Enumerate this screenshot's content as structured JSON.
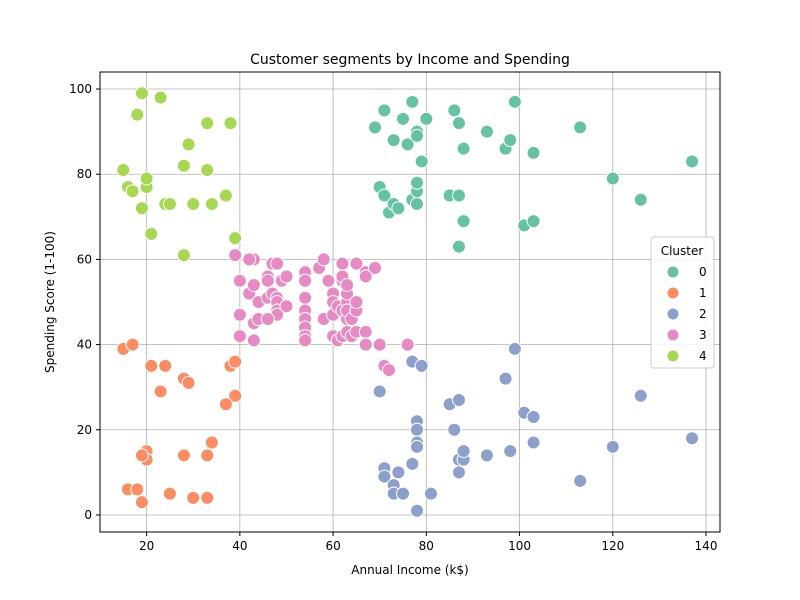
{
  "chart_data": {
    "type": "scatter",
    "title": "Customer segments by Income and Spending",
    "xlabel": "Annual Income (k$)",
    "ylabel": "Spending Score (1-100)",
    "xlim": [
      10,
      143
    ],
    "ylim": [
      -4,
      104
    ],
    "xticks": [
      20,
      40,
      60,
      80,
      100,
      120,
      140
    ],
    "yticks": [
      0,
      20,
      40,
      60,
      80,
      100
    ],
    "grid": true,
    "legend": {
      "title": "Cluster",
      "placement": "center-right"
    },
    "series": [
      {
        "name": "0",
        "color": "#66c2a5",
        "points": [
          [
            69,
            91
          ],
          [
            71,
            95
          ],
          [
            73,
            88
          ],
          [
            75,
            93
          ],
          [
            77,
            97
          ],
          [
            76,
            87
          ],
          [
            78,
            90
          ],
          [
            78,
            89
          ],
          [
            79,
            83
          ],
          [
            80,
            93
          ],
          [
            86,
            95
          ],
          [
            87,
            92
          ],
          [
            88,
            86
          ],
          [
            93,
            90
          ],
          [
            97,
            86
          ],
          [
            98,
            88
          ],
          [
            99,
            97
          ],
          [
            103,
            85
          ],
          [
            113,
            91
          ],
          [
            120,
            79
          ],
          [
            126,
            74
          ],
          [
            137,
            83
          ],
          [
            70,
            77
          ],
          [
            71,
            75
          ],
          [
            72,
            71
          ],
          [
            73,
            73
          ],
          [
            74,
            72
          ],
          [
            77,
            74
          ],
          [
            78,
            76
          ],
          [
            78,
            78
          ],
          [
            78,
            73
          ],
          [
            85,
            75
          ],
          [
            87,
            75
          ],
          [
            88,
            69
          ],
          [
            87,
            63
          ],
          [
            101,
            68
          ],
          [
            103,
            69
          ]
        ]
      },
      {
        "name": "1",
        "color": "#fc8d62",
        "points": [
          [
            15,
            39
          ],
          [
            17,
            40
          ],
          [
            21,
            35
          ],
          [
            24,
            35
          ],
          [
            28,
            32
          ],
          [
            29,
            31
          ],
          [
            23,
            29
          ],
          [
            38,
            35
          ],
          [
            39,
            36
          ],
          [
            39,
            28
          ],
          [
            37,
            26
          ],
          [
            20,
            15
          ],
          [
            20,
            13
          ],
          [
            19,
            14
          ],
          [
            28,
            14
          ],
          [
            33,
            14
          ],
          [
            34,
            17
          ],
          [
            16,
            6
          ],
          [
            18,
            6
          ],
          [
            19,
            3
          ],
          [
            25,
            5
          ],
          [
            30,
            4
          ],
          [
            33,
            4
          ]
        ]
      },
      {
        "name": "2",
        "color": "#8da0cb",
        "points": [
          [
            70,
            29
          ],
          [
            77,
            36
          ],
          [
            79,
            35
          ],
          [
            97,
            32
          ],
          [
            99,
            39
          ],
          [
            126,
            28
          ],
          [
            85,
            26
          ],
          [
            87,
            27
          ],
          [
            101,
            24
          ],
          [
            103,
            23
          ],
          [
            78,
            22
          ],
          [
            78,
            20
          ],
          [
            78,
            17
          ],
          [
            78,
            16
          ],
          [
            86,
            20
          ],
          [
            87,
            13
          ],
          [
            88,
            13
          ],
          [
            88,
            15
          ],
          [
            93,
            14
          ],
          [
            98,
            15
          ],
          [
            103,
            17
          ],
          [
            120,
            16
          ],
          [
            137,
            18
          ],
          [
            71,
            11
          ],
          [
            71,
            9
          ],
          [
            74,
            10
          ],
          [
            77,
            12
          ],
          [
            73,
            7
          ],
          [
            73,
            5
          ],
          [
            75,
            5
          ],
          [
            81,
            5
          ],
          [
            78,
            1
          ],
          [
            113,
            8
          ],
          [
            87,
            10
          ]
        ]
      },
      {
        "name": "3",
        "color": "#e78ac3",
        "points": [
          [
            39,
            61
          ],
          [
            40,
            55
          ],
          [
            42,
            52
          ],
          [
            43,
            60
          ],
          [
            44,
            50
          ],
          [
            46,
            51
          ],
          [
            46,
            56
          ],
          [
            46,
            55
          ],
          [
            47,
            52
          ],
          [
            47,
            59
          ],
          [
            48,
            51
          ],
          [
            48,
            59
          ],
          [
            48,
            50
          ],
          [
            48,
            48
          ],
          [
            48,
            47
          ],
          [
            49,
            55
          ],
          [
            50,
            56
          ],
          [
            50,
            49
          ],
          [
            54,
            57
          ],
          [
            54,
            55
          ],
          [
            54,
            51
          ],
          [
            54,
            48
          ],
          [
            54,
            46
          ],
          [
            54,
            44
          ],
          [
            54,
            42
          ],
          [
            54,
            41
          ],
          [
            57,
            58
          ],
          [
            58,
            60
          ],
          [
            58,
            46
          ],
          [
            59,
            55
          ],
          [
            60,
            52
          ],
          [
            60,
            47
          ],
          [
            60,
            50
          ],
          [
            60,
            42
          ],
          [
            61,
            49
          ],
          [
            61,
            41
          ],
          [
            62,
            48
          ],
          [
            62,
            59
          ],
          [
            62,
            55
          ],
          [
            62,
            56
          ],
          [
            62,
            42
          ],
          [
            63,
            50
          ],
          [
            63,
            46
          ],
          [
            63,
            43
          ],
          [
            63,
            48
          ],
          [
            63,
            52
          ],
          [
            63,
            54
          ],
          [
            64,
            42
          ],
          [
            64,
            46
          ],
          [
            65,
            48
          ],
          [
            65,
            50
          ],
          [
            65,
            43
          ],
          [
            65,
            59
          ],
          [
            67,
            43
          ],
          [
            67,
            57
          ],
          [
            67,
            56
          ],
          [
            67,
            40
          ],
          [
            69,
            58
          ],
          [
            70,
            40
          ],
          [
            71,
            35
          ],
          [
            72,
            34
          ],
          [
            76,
            40
          ],
          [
            40,
            47
          ],
          [
            40,
            42
          ],
          [
            43,
            41
          ],
          [
            43,
            45
          ],
          [
            44,
            46
          ],
          [
            46,
            46
          ],
          [
            43,
            54
          ],
          [
            42,
            60
          ]
        ]
      },
      {
        "name": "4",
        "color": "#a6d854",
        "points": [
          [
            15,
            81
          ],
          [
            16,
            77
          ],
          [
            17,
            76
          ],
          [
            18,
            94
          ],
          [
            19,
            72
          ],
          [
            19,
            99
          ],
          [
            20,
            77
          ],
          [
            20,
            79
          ],
          [
            21,
            66
          ],
          [
            23,
            98
          ],
          [
            24,
            73
          ],
          [
            25,
            73
          ],
          [
            28,
            82
          ],
          [
            28,
            61
          ],
          [
            29,
            87
          ],
          [
            30,
            73
          ],
          [
            33,
            81
          ],
          [
            33,
            92
          ],
          [
            34,
            73
          ],
          [
            37,
            75
          ],
          [
            38,
            92
          ],
          [
            39,
            65
          ]
        ]
      }
    ]
  }
}
